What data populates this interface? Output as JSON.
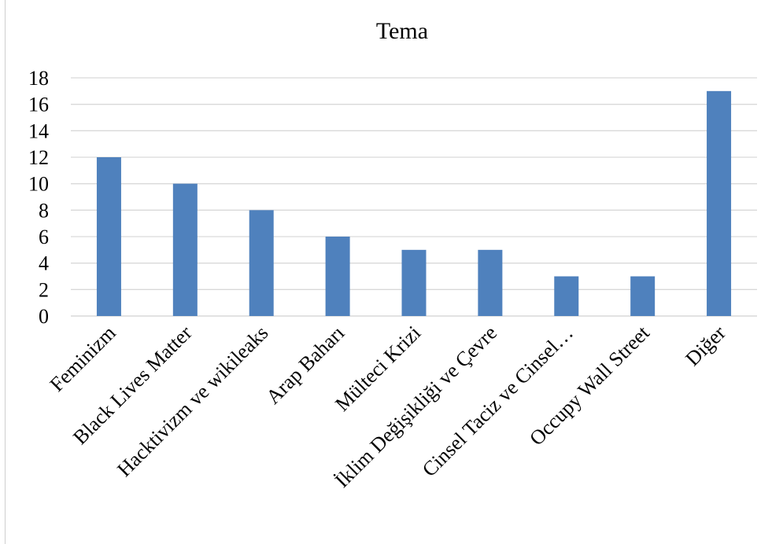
{
  "chart_data": {
    "type": "bar",
    "title": "Tema",
    "categories": [
      "Feminizm",
      "Black Lives Matter",
      "Hacktivizm ve wikileaks",
      "Arap Baharı",
      "Mülteci Krizi",
      "İklim Değişikliği ve Çevre",
      "Cinsel Taciz ve Cinsel…",
      "Occupy Wall Street",
      "Diğer"
    ],
    "values": [
      12,
      10,
      8,
      6,
      5,
      5,
      3,
      3,
      17
    ],
    "ylim": [
      0,
      18
    ],
    "yticks": [
      0,
      2,
      4,
      6,
      8,
      10,
      12,
      14,
      16,
      18
    ],
    "grid": true,
    "legend": "none",
    "bar_color": "#4f81bd",
    "grid_color": "#d9d9d9"
  }
}
